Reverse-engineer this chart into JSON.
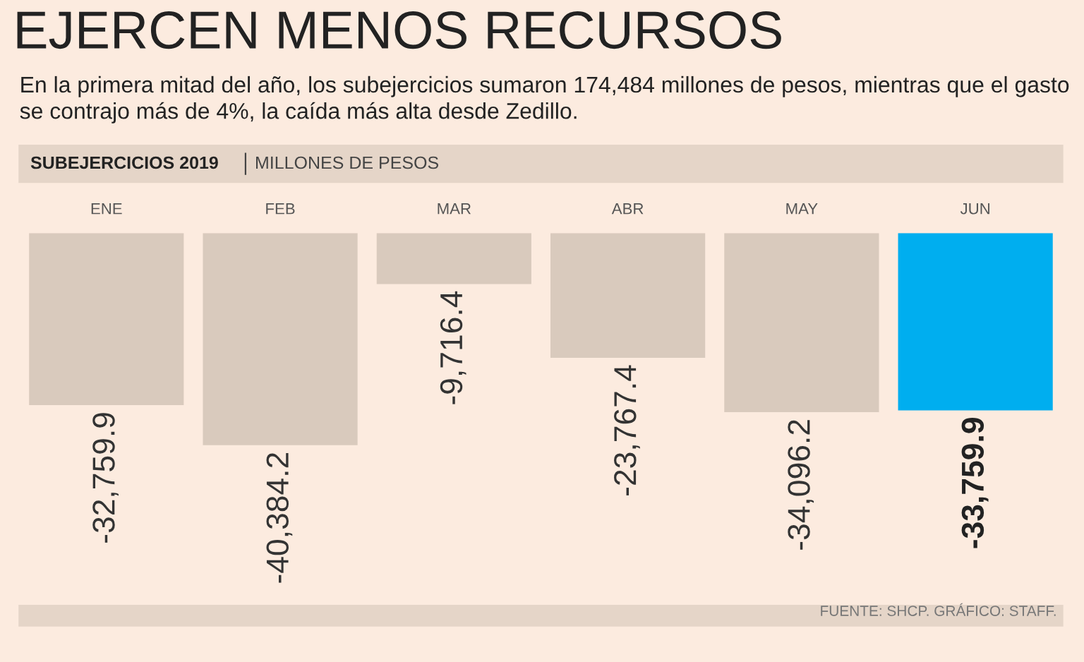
{
  "chart_data": {
    "type": "bar",
    "title": "EJERCEN MENOS RECURSOS",
    "subtitle": "En la primera mitad del año, los subejercicios sumaron 174,484 millones de pesos, mientras que el gasto se contrajo más de 4%, la caída más alta desde Zedillo.",
    "annotations": [
      "SUBEJERCICIOS 2019",
      "MILLONES DE PESOS",
      "FUENTE: SHCP. GRÁFICO: STAFF."
    ],
    "categories": [
      "ENE",
      "FEB",
      "MAR",
      "ABR",
      "MAY",
      "JUN"
    ],
    "values": [
      -32759.9,
      -40384.2,
      -9716.4,
      -23767.4,
      -34096.2,
      -33759.9
    ],
    "value_labels": [
      "-32,759.9",
      "-40,384.2",
      "-9,716.4",
      "-23,767.4",
      "-34,096.2",
      "-33,759.9"
    ],
    "colors": [
      "#d9cabd",
      "#d9cabd",
      "#d9cabd",
      "#d9cabd",
      "#d9cabd",
      "#00aeef"
    ],
    "grid": false,
    "legend": false
  }
}
